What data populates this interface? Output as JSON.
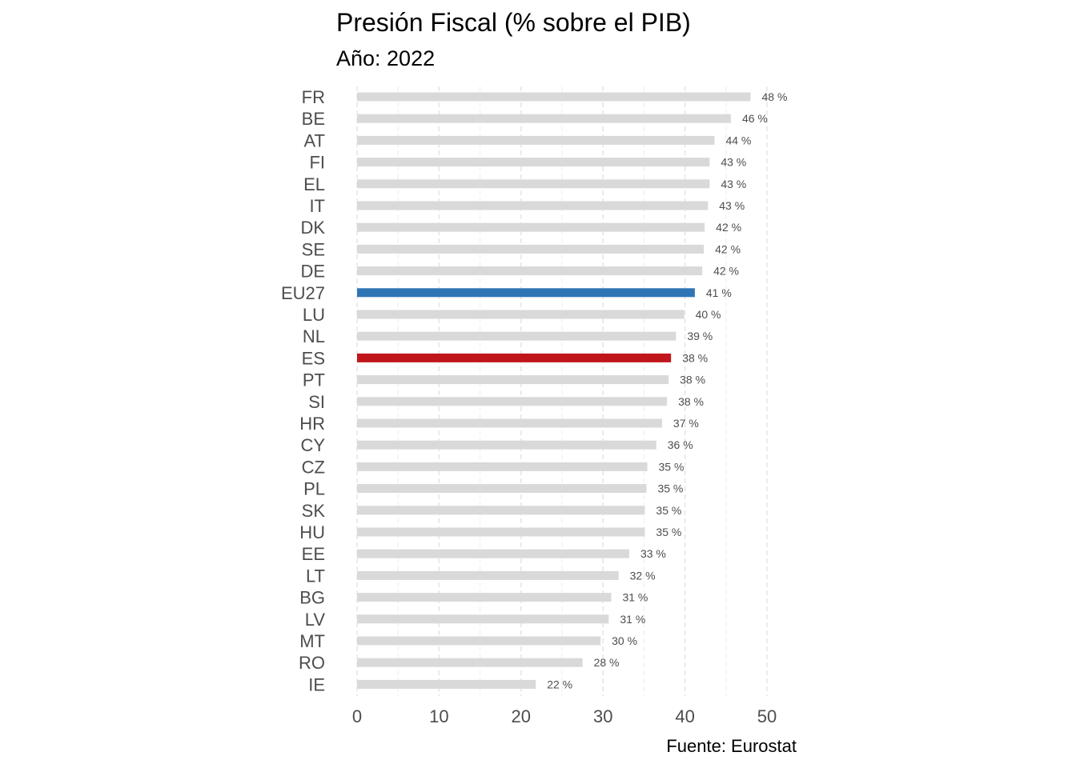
{
  "chart_data": {
    "type": "bar",
    "orientation": "horizontal",
    "title": "Presión Fiscal (% sobre el PIB)",
    "subtitle": "Año: 2022",
    "caption": "Fuente: Eurostat",
    "xlabel": "",
    "ylabel": "",
    "xlim": [
      0,
      50
    ],
    "xticks": [
      0,
      10,
      20,
      30,
      40,
      50
    ],
    "grid": "vertical dashed",
    "value_suffix": " %",
    "categories": [
      "FR",
      "BE",
      "AT",
      "FI",
      "EL",
      "IT",
      "DK",
      "SE",
      "DE",
      "EU27",
      "LU",
      "NL",
      "ES",
      "PT",
      "SI",
      "HR",
      "CY",
      "CZ",
      "PL",
      "SK",
      "HU",
      "EE",
      "LT",
      "BG",
      "LV",
      "MT",
      "RO",
      "IE"
    ],
    "values": [
      48.0,
      45.6,
      43.6,
      43.0,
      43.0,
      42.8,
      42.4,
      42.3,
      42.1,
      41.2,
      39.9,
      38.9,
      38.3,
      38.0,
      37.8,
      37.2,
      36.5,
      35.4,
      35.3,
      35.1,
      35.1,
      33.2,
      31.9,
      31.0,
      30.7,
      29.7,
      27.5,
      21.8
    ],
    "labels": [
      "48 %",
      "46 %",
      "44 %",
      "43 %",
      "43 %",
      "43 %",
      "42 %",
      "42 %",
      "42 %",
      "41 %",
      "40 %",
      "39 %",
      "38 %",
      "38 %",
      "38 %",
      "37 %",
      "36 %",
      "35 %",
      "35 %",
      "35 %",
      "35 %",
      "33 %",
      "32 %",
      "31 %",
      "31 %",
      "30 %",
      "28 %",
      "22 %"
    ],
    "highlight": {
      "EU27": "#2e75b6",
      "ES": "#c0161b"
    },
    "default_color": "#d9d9d9"
  }
}
